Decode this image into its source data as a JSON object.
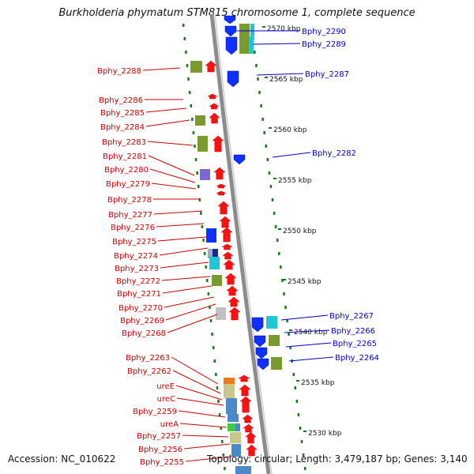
{
  "title": "Burkholderia phymatum STM815 chromosome 1, complete sequence",
  "footer": {
    "accession": "Accession: NC_010622",
    "summary": "Topology: circular; Length: 3,479,187 bp; Genes: 3,140"
  },
  "colors": {
    "forward_strand_label": "#cc0000",
    "reverse_strand_label": "#0000cc",
    "backbone": "#8c8c8c",
    "tick_dots": "#1a7a1a"
  },
  "scale_labels": [
    "2570 kbp",
    "2565 kbp",
    "2560 kbp",
    "2555 kbp",
    "2550 kbp",
    "2545 kbp",
    "2540 kbp",
    "2535 kbp",
    "2530 kbp"
  ],
  "reverse_genes": [
    "Bphy_2290",
    "Bphy_2289",
    "Bphy_2287",
    "Bphy_2282",
    "Bphy_2267",
    "Bphy_2266",
    "Bphy_2265",
    "Bphy_2264"
  ],
  "forward_genes": [
    "Bphy_2288",
    "Bphy_2286",
    "Bphy_2285",
    "Bphy_2284",
    "Bphy_2283",
    "Bphy_2281",
    "Bphy_2280",
    "Bphy_2279",
    "Bphy_2278",
    "Bphy_2277",
    "Bphy_2276",
    "Bphy_2275",
    "Bphy_2274",
    "Bphy_2273",
    "Bphy_2272",
    "Bphy_2271",
    "Bphy_2270",
    "Bphy_2269",
    "Bphy_2268",
    "Bphy_2263",
    "Bphy_2262",
    "ureE",
    "ureC",
    "Bphy_2259",
    "ureA",
    "Bphy_2257",
    "Bphy_2256",
    "Bphy_2255"
  ]
}
